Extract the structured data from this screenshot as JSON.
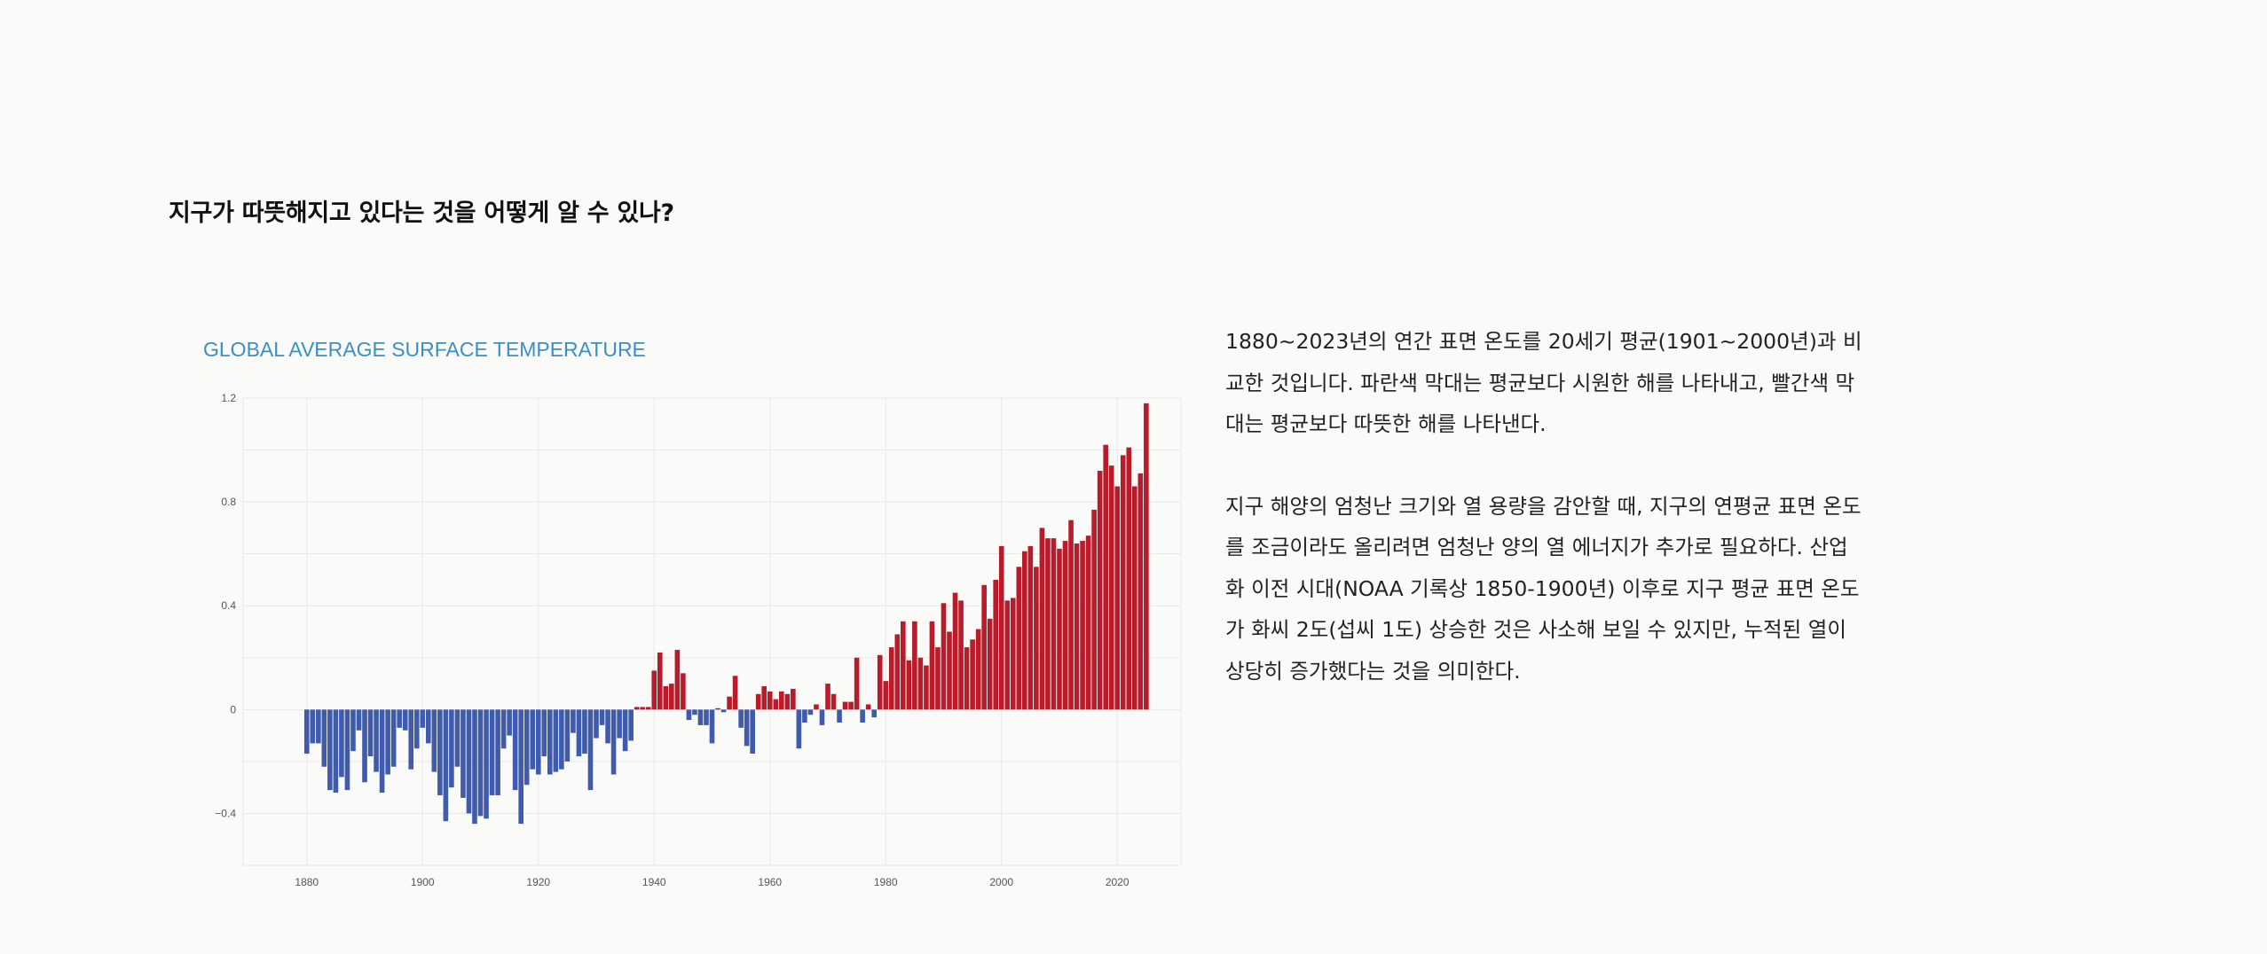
{
  "heading": "지구가 따뜻해지고 있다는 것을 어떻게 알 수 있나?",
  "description": {
    "paragraph1": "1880~2023년의 연간 표면 온도를 20세기 평균(1901~2000년)과 비교한 것입니다. 파란색 막대는 평균보다 시원한 해를 나타내고, 빨간색 막대는 평균보다 따뜻한 해를 나타낸다.",
    "paragraph2": "지구 해양의 엄청난 크기와 열 용량을 감안할 때, 지구의 연평균 표면 온도를 조금이라도 올리려면 엄청난 양의 열 에너지가 추가로 필요하다. 산업화 이전 시대(NOAA 기록상 1850-1900년) 이후로 지구 평균 표면 온도가 화씨 2도(섭씨 1도) 상승한 것은 사소해 보일 수 있지만, 누적된 열이 상당히 증가했다는 것을 의미한다."
  },
  "chart_data": {
    "type": "bar",
    "title": "GLOBAL AVERAGE SURFACE TEMPERATURE",
    "xlabel": "",
    "ylabel": "",
    "xlim": [
      1869,
      2031
    ],
    "ylim": [
      -0.6,
      1.2
    ],
    "x_ticks": [
      1880,
      1900,
      1920,
      1940,
      1960,
      1980,
      2000,
      2020
    ],
    "y_ticks": [
      -0.4,
      0,
      0.4,
      0.8,
      1.2
    ],
    "y_tick_labels": [
      "−0.4",
      "0",
      "0.4",
      "0.8",
      "1.2"
    ],
    "grid": true,
    "colors": {
      "positive": "#b81c2a",
      "negative": "#3f5ba9",
      "grid": "#e8e8e8"
    },
    "x_start": 1880,
    "values": [
      -0.17,
      -0.13,
      -0.13,
      -0.22,
      -0.31,
      -0.32,
      -0.26,
      -0.31,
      -0.16,
      -0.08,
      -0.28,
      -0.18,
      -0.24,
      -0.32,
      -0.25,
      -0.22,
      -0.07,
      -0.08,
      -0.23,
      -0.15,
      -0.07,
      -0.13,
      -0.24,
      -0.33,
      -0.43,
      -0.3,
      -0.22,
      -0.34,
      -0.4,
      -0.44,
      -0.41,
      -0.42,
      -0.33,
      -0.33,
      -0.15,
      -0.1,
      -0.31,
      -0.44,
      -0.29,
      -0.23,
      -0.25,
      -0.18,
      -0.25,
      -0.24,
      -0.23,
      -0.2,
      -0.09,
      -0.18,
      -0.17,
      -0.31,
      -0.11,
      -0.06,
      -0.13,
      -0.25,
      -0.11,
      -0.16,
      -0.12,
      0.01,
      0.01,
      0.01,
      0.15,
      0.22,
      0.09,
      0.1,
      0.23,
      0.14,
      -0.04,
      -0.02,
      -0.06,
      -0.06,
      -0.13,
      0.0,
      -0.01,
      0.05,
      0.13,
      -0.07,
      -0.14,
      -0.17,
      0.06,
      0.09,
      0.07,
      0.04,
      0.07,
      0.06,
      0.08,
      -0.15,
      -0.05,
      -0.02,
      0.02,
      -0.06,
      0.1,
      0.06,
      -0.05,
      0.03,
      0.03,
      0.2,
      -0.05,
      0.02,
      -0.03,
      0.21,
      0.11,
      0.24,
      0.29,
      0.34,
      0.19,
      0.34,
      0.2,
      0.17,
      0.34,
      0.24,
      0.41,
      0.3,
      0.45,
      0.42,
      0.24,
      0.27,
      0.31,
      0.48,
      0.35,
      0.5,
      0.63,
      0.42,
      0.43,
      0.55,
      0.61,
      0.63,
      0.55,
      0.7,
      0.66,
      0.66,
      0.62,
      0.65,
      0.73,
      0.64,
      0.65,
      0.67,
      0.77,
      0.92,
      1.02,
      0.94,
      0.86,
      0.98,
      1.01,
      0.86,
      0.91,
      1.18
    ]
  }
}
